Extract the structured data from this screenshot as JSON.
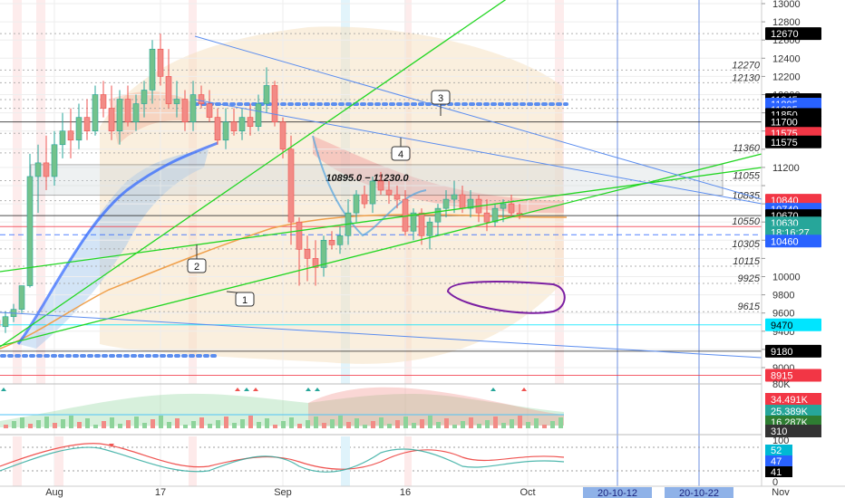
{
  "chart_data": {
    "type": "candlestick",
    "price_axis": {
      "range": [
        8700,
        13100
      ],
      "ticks": [
        9000,
        9200,
        9400,
        9600,
        9800,
        10000,
        10200,
        10400,
        10600,
        10800,
        11000,
        11200,
        11400,
        11600,
        11800,
        12000,
        12200,
        12400,
        12600,
        12800,
        13000
      ],
      "tick_labels": [
        "9000",
        "",
        "9400",
        "9600",
        "9800",
        "10000",
        "",
        "",
        "",
        "",
        "",
        "11200",
        "",
        "",
        "",
        "12000",
        "12200",
        "12400",
        "12600",
        "12800",
        "13000"
      ]
    },
    "time_axis": {
      "labels": [
        {
          "text": "Aug",
          "day": 4
        },
        {
          "text": "17",
          "day": 17
        },
        {
          "text": "Sep",
          "day": 32
        },
        {
          "text": "16",
          "day": 47
        },
        {
          "text": "Oct",
          "day": 62
        },
        {
          "text": "Nov",
          "day": 93
        }
      ],
      "date_badges": [
        {
          "text": "20-10-12",
          "day": 73
        },
        {
          "text": "20-10-22",
          "day": 83
        }
      ],
      "day_range": [
        -6,
        96
      ]
    },
    "price_badges": [
      {
        "text": "12670",
        "price": 12670,
        "color": "#000000"
      },
      {
        "text": "11945",
        "price": 11945,
        "color": "#000000"
      },
      {
        "text": "11895",
        "price": 11895,
        "color": "#2962ff"
      },
      {
        "text": "11895",
        "price": 11838,
        "color": "#2962ff"
      },
      {
        "text": "11850",
        "price": 11782,
        "color": "#000000"
      },
      {
        "text": "11700",
        "price": 11700,
        "color": "#000000"
      },
      {
        "text": "11575",
        "price": 11575,
        "color": "#f23645"
      },
      {
        "text": "11575",
        "price": 11480,
        "color": "#000000"
      },
      {
        "text": "10840",
        "price": 10840,
        "color": "#f23645"
      },
      {
        "text": "10740",
        "price": 10740,
        "color": "#2962ff"
      },
      {
        "text": "10670",
        "price": 10670,
        "color": "#000000"
      },
      {
        "text": "10630",
        "price": 10590,
        "color": "#26a69a"
      },
      {
        "text": "18:16:27",
        "price": 10490,
        "color": "#26a69a"
      },
      {
        "text": "10460",
        "price": 10390,
        "color": "#2962ff"
      },
      {
        "text": "9470",
        "price": 9470,
        "color": "#00e5ff"
      },
      {
        "text": "9180",
        "price": 9180,
        "color": "#000000"
      },
      {
        "text": "8915",
        "price": 8915,
        "color": "#f23645"
      }
    ],
    "level_labels": [
      {
        "text": "12270",
        "price": 12270
      },
      {
        "text": "12130",
        "price": 12130
      },
      {
        "text": "11360",
        "price": 11360
      },
      {
        "text": "11055",
        "price": 11055
      },
      {
        "text": "10835",
        "price": 10835
      },
      {
        "text": "10550",
        "price": 10550
      },
      {
        "text": "10305",
        "price": 10305
      },
      {
        "text": "10115",
        "price": 10115
      },
      {
        "text": "9925",
        "price": 9925
      },
      {
        "text": "9615",
        "price": 9615
      }
    ],
    "range_box": {
      "text": "10895.0 − 11230.0",
      "low": 10895,
      "high": 11230,
      "day_start": 1,
      "day_end": 86
    },
    "callouts": [
      "1",
      "2",
      "3",
      "4"
    ],
    "candles": [
      {
        "d": -5,
        "o": 9180,
        "h": 9480,
        "l": 9120,
        "c": 9350
      },
      {
        "d": -4,
        "o": 9350,
        "h": 9700,
        "l": 9300,
        "c": 9520
      },
      {
        "d": -3,
        "o": 9520,
        "h": 9650,
        "l": 9400,
        "c": 9450
      },
      {
        "d": -2,
        "o": 9450,
        "h": 9620,
        "l": 9380,
        "c": 9560
      },
      {
        "d": -1,
        "o": 9560,
        "h": 9700,
        "l": 9500,
        "c": 9640
      },
      {
        "d": 0,
        "o": 9640,
        "h": 9900,
        "l": 9600,
        "c": 9900
      },
      {
        "d": 1,
        "o": 9900,
        "h": 11350,
        "l": 9880,
        "c": 11100
      },
      {
        "d": 2,
        "o": 11100,
        "h": 11450,
        "l": 10700,
        "c": 11250
      },
      {
        "d": 3,
        "o": 11250,
        "h": 11550,
        "l": 10950,
        "c": 11100
      },
      {
        "d": 4,
        "o": 11100,
        "h": 11600,
        "l": 11000,
        "c": 11450
      },
      {
        "d": 5,
        "o": 11450,
        "h": 11800,
        "l": 11300,
        "c": 11600
      },
      {
        "d": 6,
        "o": 11600,
        "h": 11850,
        "l": 11300,
        "c": 11500
      },
      {
        "d": 7,
        "o": 11500,
        "h": 11900,
        "l": 11400,
        "c": 11750
      },
      {
        "d": 8,
        "o": 11750,
        "h": 11950,
        "l": 11500,
        "c": 11600
      },
      {
        "d": 9,
        "o": 11600,
        "h": 12100,
        "l": 11550,
        "c": 12000
      },
      {
        "d": 10,
        "o": 12000,
        "h": 12150,
        "l": 11750,
        "c": 11850
      },
      {
        "d": 11,
        "o": 11850,
        "h": 12100,
        "l": 11500,
        "c": 11600
      },
      {
        "d": 12,
        "o": 11600,
        "h": 12050,
        "l": 11450,
        "c": 11950
      },
      {
        "d": 13,
        "o": 11950,
        "h": 12100,
        "l": 11650,
        "c": 11700
      },
      {
        "d": 14,
        "o": 11700,
        "h": 12000,
        "l": 11600,
        "c": 11900
      },
      {
        "d": 15,
        "o": 11900,
        "h": 12150,
        "l": 11750,
        "c": 12050
      },
      {
        "d": 16,
        "o": 12050,
        "h": 12600,
        "l": 11900,
        "c": 12500
      },
      {
        "d": 17,
        "o": 12500,
        "h": 12670,
        "l": 12100,
        "c": 12200
      },
      {
        "d": 18,
        "o": 12200,
        "h": 12500,
        "l": 11850,
        "c": 11900
      },
      {
        "d": 19,
        "o": 11900,
        "h": 12150,
        "l": 11750,
        "c": 11950
      },
      {
        "d": 20,
        "o": 11950,
        "h": 12050,
        "l": 11600,
        "c": 11700
      },
      {
        "d": 21,
        "o": 11700,
        "h": 12150,
        "l": 11600,
        "c": 12000
      },
      {
        "d": 22,
        "o": 12000,
        "h": 12100,
        "l": 11850,
        "c": 11900
      },
      {
        "d": 23,
        "o": 11900,
        "h": 12050,
        "l": 11700,
        "c": 11750
      },
      {
        "d": 24,
        "o": 11750,
        "h": 11850,
        "l": 11450,
        "c": 11500
      },
      {
        "d": 25,
        "o": 11500,
        "h": 11850,
        "l": 11400,
        "c": 11700
      },
      {
        "d": 26,
        "o": 11700,
        "h": 11850,
        "l": 11550,
        "c": 11600
      },
      {
        "d": 27,
        "o": 11600,
        "h": 11850,
        "l": 11500,
        "c": 11750
      },
      {
        "d": 28,
        "o": 11750,
        "h": 11900,
        "l": 11550,
        "c": 11650
      },
      {
        "d": 29,
        "o": 11650,
        "h": 12000,
        "l": 11600,
        "c": 11900
      },
      {
        "d": 30,
        "o": 11900,
        "h": 12300,
        "l": 11800,
        "c": 12100
      },
      {
        "d": 31,
        "o": 12100,
        "h": 12150,
        "l": 11650,
        "c": 11700
      },
      {
        "d": 32,
        "o": 11700,
        "h": 11750,
        "l": 11300,
        "c": 11400
      },
      {
        "d": 33,
        "o": 11400,
        "h": 11550,
        "l": 10350,
        "c": 10600
      },
      {
        "d": 34,
        "o": 10600,
        "h": 10650,
        "l": 9900,
        "c": 10300
      },
      {
        "d": 35,
        "o": 10300,
        "h": 10450,
        "l": 9950,
        "c": 10200
      },
      {
        "d": 36,
        "o": 10200,
        "h": 10400,
        "l": 9900,
        "c": 10100
      },
      {
        "d": 37,
        "o": 10100,
        "h": 10450,
        "l": 10000,
        "c": 10400
      },
      {
        "d": 38,
        "o": 10400,
        "h": 10500,
        "l": 10300,
        "c": 10350
      },
      {
        "d": 39,
        "o": 10350,
        "h": 10550,
        "l": 10250,
        "c": 10450
      },
      {
        "d": 40,
        "o": 10450,
        "h": 10850,
        "l": 10350,
        "c": 10700
      },
      {
        "d": 41,
        "o": 10700,
        "h": 10950,
        "l": 10600,
        "c": 10900
      },
      {
        "d": 42,
        "o": 10900,
        "h": 11000,
        "l": 10750,
        "c": 10800
      },
      {
        "d": 43,
        "o": 10800,
        "h": 11100,
        "l": 10700,
        "c": 11050
      },
      {
        "d": 44,
        "o": 11050,
        "h": 11150,
        "l": 10900,
        "c": 10950
      },
      {
        "d": 45,
        "o": 10950,
        "h": 11050,
        "l": 10800,
        "c": 10900
      },
      {
        "d": 46,
        "o": 10900,
        "h": 11000,
        "l": 10750,
        "c": 10850
      },
      {
        "d": 47,
        "o": 10850,
        "h": 10950,
        "l": 10450,
        "c": 10500
      },
      {
        "d": 48,
        "o": 10500,
        "h": 10750,
        "l": 10400,
        "c": 10700
      },
      {
        "d": 49,
        "o": 10700,
        "h": 10750,
        "l": 10350,
        "c": 10450
      },
      {
        "d": 50,
        "o": 10450,
        "h": 10650,
        "l": 10300,
        "c": 10600
      },
      {
        "d": 51,
        "o": 10600,
        "h": 10800,
        "l": 10450,
        "c": 10750
      },
      {
        "d": 52,
        "o": 10750,
        "h": 10950,
        "l": 10650,
        "c": 10850
      },
      {
        "d": 53,
        "o": 10850,
        "h": 11050,
        "l": 10700,
        "c": 10900
      },
      {
        "d": 54,
        "o": 10900,
        "h": 11000,
        "l": 10700,
        "c": 10750
      },
      {
        "d": 55,
        "o": 10750,
        "h": 10950,
        "l": 10650,
        "c": 10850
      },
      {
        "d": 56,
        "o": 10850,
        "h": 10900,
        "l": 10600,
        "c": 10700
      },
      {
        "d": 57,
        "o": 10700,
        "h": 10850,
        "l": 10500,
        "c": 10600
      },
      {
        "d": 58,
        "o": 10600,
        "h": 10800,
        "l": 10550,
        "c": 10750
      },
      {
        "d": 59,
        "o": 10750,
        "h": 10850,
        "l": 10600,
        "c": 10800
      },
      {
        "d": 60,
        "o": 10800,
        "h": 10900,
        "l": 10650,
        "c": 10700
      },
      {
        "d": 61,
        "o": 10700,
        "h": 10800,
        "l": 10630,
        "c": 10670
      }
    ],
    "volume_axis": {
      "labels": [
        "80K",
        "34.491K",
        "25.389K",
        "16.287K",
        "310"
      ]
    },
    "oscillator_axis": {
      "labels": [
        "100",
        "52",
        "47",
        "41",
        "0"
      ]
    }
  }
}
